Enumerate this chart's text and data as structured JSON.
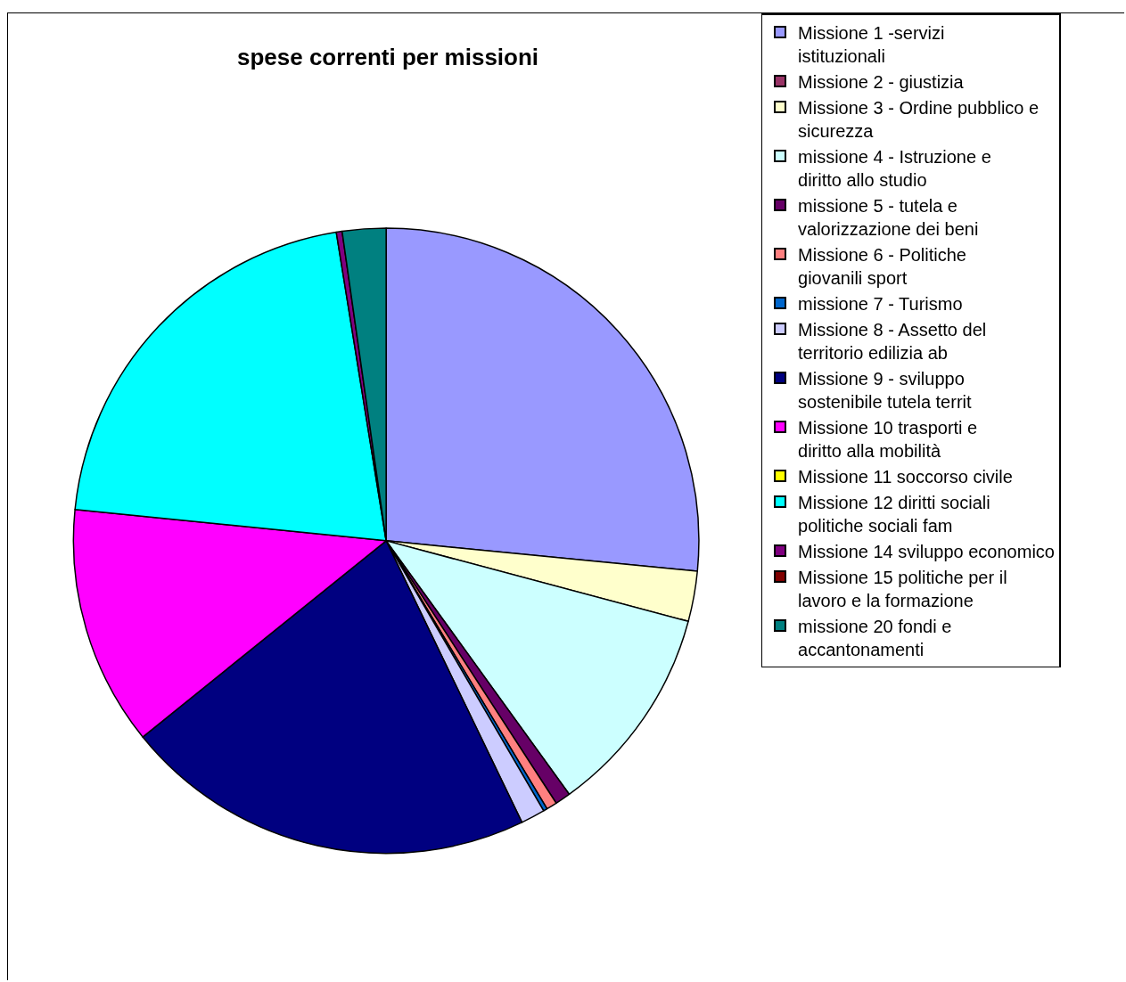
{
  "chart_data": {
    "type": "pie",
    "title": "spese correnti per missioni",
    "categories": [
      "Missione 1 -servizi istituzionali",
      "Missione 2 - giustizia",
      "Missione 3 - Ordine pubblico e sicurezza",
      "missione 4 - Istruzione e diritto allo studio",
      "missione 5 - tutela e valorizzazione dei beni",
      "Missione 6 - Politiche giovanili sport",
      "missione 7 - Turismo",
      "Missione 8 - Assetto del territorio edilizia ab",
      "Missione 9 - sviluppo sostenibile tutela territ",
      "Missione 10 trasporti e diritto alla mobilità",
      "Missione 11 soccorso civile",
      "Missione 12 diritti sociali politiche sociali fam",
      "Missione 14 sviluppo economico",
      "Missione 15 politiche per il lavoro e la formazione",
      "missione 20 fondi e accantonamenti"
    ],
    "values": [
      26.55,
      0,
      2.6,
      10.9,
      0.8,
      0.55,
      0.2,
      1.25,
      21.35,
      12.4,
      0,
      20.85,
      0.3,
      0,
      2.25
    ],
    "colors": [
      "#9999ff",
      "#993366",
      "#ffffcc",
      "#ccffff",
      "#660066",
      "#ff8080",
      "#0066cc",
      "#ccccff",
      "#000080",
      "#ff00ff",
      "#ffff00",
      "#00ffff",
      "#800080",
      "#800000",
      "#008080"
    ],
    "legend": "right"
  }
}
